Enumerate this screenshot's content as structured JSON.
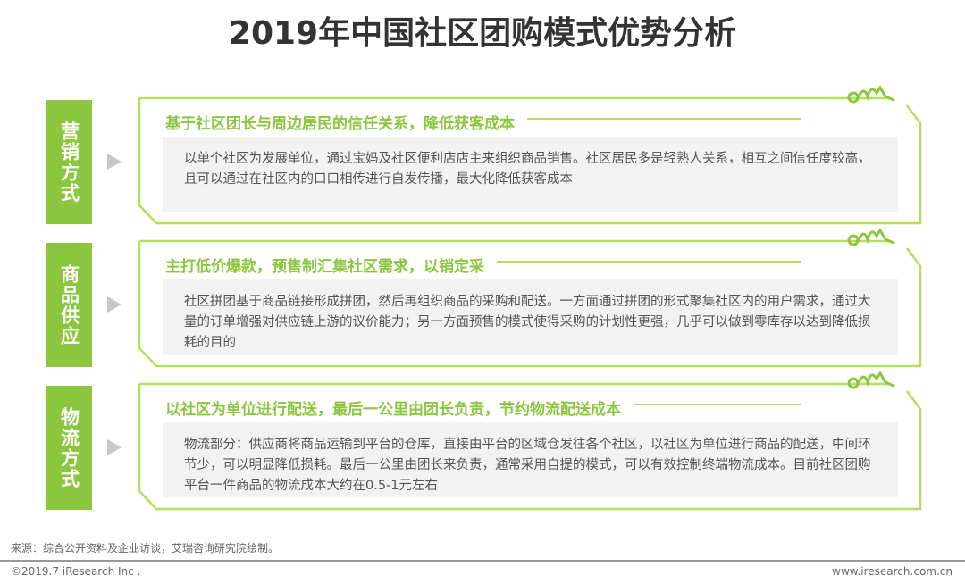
{
  "title": "2019年中国社区团购模式优势分析",
  "colors": {
    "accent": "#8cc63f",
    "border": "#b7dd5e",
    "panel": "#f2f2f2"
  },
  "sections": [
    {
      "label": "营销方式",
      "heading": "基于社区团长与周边居民的信任关系，降低获客成本",
      "body": "以单个社区为发展单位，通过宝妈及社区便利店店主来组织商品销售。社区居民多是轻熟人关系，相互之间信任度较高，且可以通过在社区内的口口相传进行自发传播，最大化降低获客成本"
    },
    {
      "label": "商品供应",
      "heading": "主打低价爆款，预售制汇集社区需求，以销定采",
      "body": "社区拼团基于商品链接形成拼团，然后再组织商品的采购和配送。一方面通过拼团的形式聚集社区内的用户需求，通过大量的订单增强对供应链上游的议价能力；另一方面预售的模式使得采购的计划性更强，几乎可以做到零库存以达到降低损耗的目的"
    },
    {
      "label": "物流方式",
      "heading": "以社区为单位进行配送，最后一公里由团长负责，节约物流配送成本",
      "body": "物流部分：供应商将商品运输到平台的仓库，直接由平台的区域仓发往各个社区，以社区为单位进行商品的配送，中间环节少，可以明显降低损耗。最后一公里由团长来负责，通常采用自提的模式，可以有效控制终端物流成本。目前社区团购平台一件商品的物流成本大约在0.5-1元左右"
    }
  ],
  "footer": {
    "source": "来源：综合公开资料及企业访谈，艾瑞咨询研究院绘制。",
    "copyright": "©2019.7 iResearch Inc .",
    "url": "www.iresearch.com.cn"
  }
}
